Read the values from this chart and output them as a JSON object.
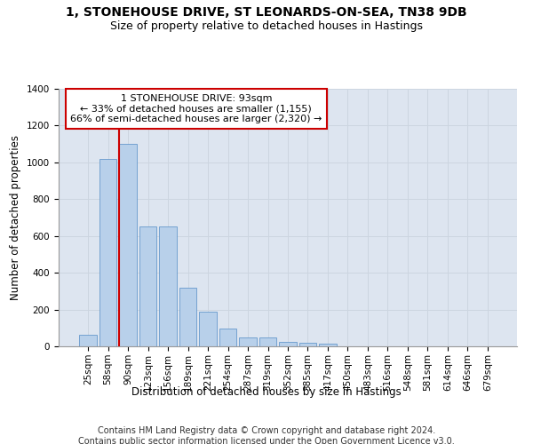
{
  "title_line1": "1, STONEHOUSE DRIVE, ST LEONARDS-ON-SEA, TN38 9DB",
  "title_line2": "Size of property relative to detached houses in Hastings",
  "xlabel": "Distribution of detached houses by size in Hastings",
  "ylabel": "Number of detached properties",
  "bar_labels": [
    "25sqm",
    "58sqm",
    "90sqm",
    "123sqm",
    "156sqm",
    "189sqm",
    "221sqm",
    "254sqm",
    "287sqm",
    "319sqm",
    "352sqm",
    "385sqm",
    "417sqm",
    "450sqm",
    "483sqm",
    "516sqm",
    "548sqm",
    "581sqm",
    "614sqm",
    "646sqm",
    "679sqm"
  ],
  "bar_values": [
    65,
    1020,
    1100,
    650,
    650,
    320,
    190,
    95,
    50,
    48,
    25,
    20,
    15,
    0,
    0,
    0,
    0,
    0,
    0,
    0,
    0
  ],
  "bar_color": "#b8d0ea",
  "bar_edge_color": "#6699cc",
  "highlight_color": "#cc0000",
  "annotation_text": "1 STONEHOUSE DRIVE: 93sqm\n← 33% of detached houses are smaller (1,155)\n66% of semi-detached houses are larger (2,320) →",
  "annotation_box_color": "#ffffff",
  "annotation_box_edge": "#cc0000",
  "ylim": [
    0,
    1400
  ],
  "yticks": [
    0,
    200,
    400,
    600,
    800,
    1000,
    1200,
    1400
  ],
  "grid_color": "#ccd5e0",
  "bg_color": "#dde5f0",
  "footer_text": "Contains HM Land Registry data © Crown copyright and database right 2024.\nContains public sector information licensed under the Open Government Licence v3.0.",
  "title_fontsize": 10,
  "subtitle_fontsize": 9,
  "axis_label_fontsize": 8.5,
  "tick_fontsize": 7.5,
  "annotation_fontsize": 8,
  "footer_fontsize": 7
}
